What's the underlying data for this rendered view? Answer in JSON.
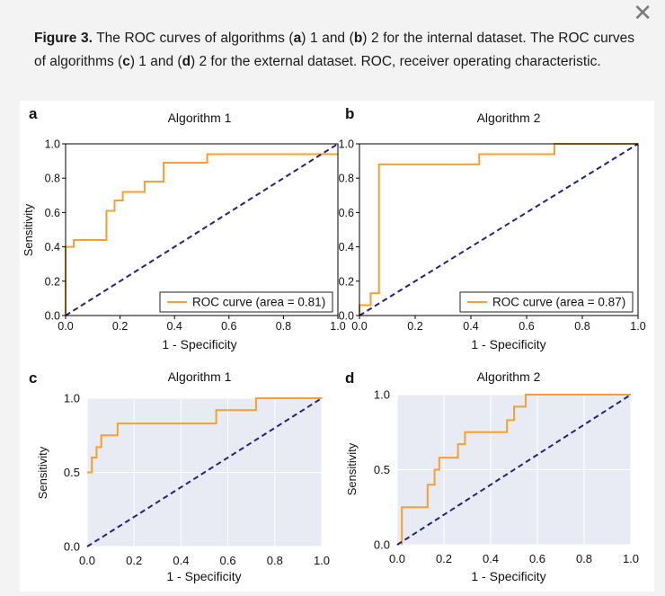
{
  "dialog": {
    "close_symbol": "✕"
  },
  "caption": {
    "figure_label": "Figure 3.",
    "segments": [
      {
        "text": " The ROC curves of algorithms (",
        "bold": false
      },
      {
        "text": "a",
        "bold": true
      },
      {
        "text": ") 1 and (",
        "bold": false
      },
      {
        "text": "b",
        "bold": true
      },
      {
        "text": ") 2 for the internal dataset. The ROC curves of algorithms (",
        "bold": false
      },
      {
        "text": "c",
        "bold": true
      },
      {
        "text": ") 1 and (",
        "bold": false
      },
      {
        "text": "d",
        "bold": true
      },
      {
        "text": ") 2 for the external dataset. ROC, receiver operating characteristic.",
        "bold": false
      }
    ]
  },
  "colors": {
    "roc": "#f5a030",
    "diagonal": "#23237e",
    "axis": "#000000",
    "grid": "#ffffff",
    "panel_bg_external": "#e8eaf4"
  },
  "chart_data": [
    {
      "panel": "a",
      "type": "line",
      "title": "Algorithm 1",
      "xlabel": "1 - Specificity",
      "ylabel": "Sensitivity",
      "xlim": [
        0,
        1
      ],
      "ylim": [
        0,
        1
      ],
      "xticks": [
        "0.0",
        "0.2",
        "0.4",
        "0.6",
        "0.8",
        "1.0"
      ],
      "yticks": [
        "0.0",
        "0.2",
        "0.4",
        "0.6",
        "0.8",
        "1.0"
      ],
      "grid": false,
      "legend": {
        "label": "ROC curve (area = 0.81)",
        "placement": "bottom-right"
      },
      "series": [
        {
          "name": "ROC curve (area = 0.81)",
          "style": "step",
          "x": [
            0,
            0,
            0.03,
            0.03,
            0.15,
            0.15,
            0.18,
            0.18,
            0.21,
            0.21,
            0.29,
            0.29,
            0.36,
            0.36,
            0.52,
            0.52,
            1.0
          ],
          "y": [
            0,
            0.4,
            0.4,
            0.44,
            0.44,
            0.61,
            0.61,
            0.67,
            0.67,
            0.72,
            0.72,
            0.78,
            0.78,
            0.89,
            0.89,
            0.94,
            0.94
          ]
        },
        {
          "name": "Chance",
          "style": "dashed",
          "x": [
            0,
            1
          ],
          "y": [
            0,
            1
          ]
        }
      ]
    },
    {
      "panel": "b",
      "type": "line",
      "title": "Algorithm 2",
      "xlabel": "1 - Specificity",
      "ylabel": "",
      "xlim": [
        0,
        1
      ],
      "ylim": [
        0,
        1
      ],
      "xticks": [
        "0.0",
        "0.2",
        "0.4",
        "0.6",
        "0.8",
        "1.0"
      ],
      "yticks": [
        "0.0",
        "0.2",
        "0.4",
        "0.6",
        "0.8",
        "1.0"
      ],
      "grid": false,
      "legend": {
        "label": "ROC curve (area = 0.87)",
        "placement": "bottom-right"
      },
      "series": [
        {
          "name": "ROC curve (area = 0.87)",
          "style": "step",
          "x": [
            0,
            0,
            0.04,
            0.04,
            0.07,
            0.07,
            0.43,
            0.43,
            0.7,
            0.7,
            1.0
          ],
          "y": [
            0,
            0.06,
            0.06,
            0.13,
            0.13,
            0.88,
            0.88,
            0.94,
            0.94,
            1.0,
            1.0
          ]
        },
        {
          "name": "Chance",
          "style": "dashed",
          "x": [
            0,
            1
          ],
          "y": [
            0,
            1
          ]
        }
      ]
    },
    {
      "panel": "c",
      "type": "line",
      "title": "Algorithm 1",
      "xlabel": "1 - Specificity",
      "ylabel": "Sensitivity",
      "xlim": [
        0,
        1
      ],
      "ylim": [
        0,
        1
      ],
      "xticks": [
        "0.0",
        "0.2",
        "0.4",
        "0.6",
        "0.8",
        "1.0"
      ],
      "yticks": [
        "0.0",
        "0.5",
        "1.0"
      ],
      "grid": true,
      "series": [
        {
          "name": "ROC",
          "style": "step",
          "x": [
            0,
            0.02,
            0.02,
            0.04,
            0.04,
            0.06,
            0.06,
            0.08,
            0.08,
            0.13,
            0.13,
            0.55,
            0.55,
            0.72,
            0.72,
            1.0
          ],
          "y": [
            0.5,
            0.5,
            0.6,
            0.6,
            0.67,
            0.67,
            0.75,
            0.75,
            0.75,
            0.75,
            0.83,
            0.83,
            0.92,
            0.92,
            1.0,
            1.0
          ]
        },
        {
          "name": "Chance",
          "style": "dashed",
          "x": [
            0,
            1
          ],
          "y": [
            0,
            1
          ]
        }
      ]
    },
    {
      "panel": "d",
      "type": "line",
      "title": "Algorithm 2",
      "xlabel": "1 - Specificity",
      "ylabel": "Sensitivity",
      "xlim": [
        0,
        1
      ],
      "ylim": [
        0,
        1
      ],
      "xticks": [
        "0.0",
        "0.2",
        "0.4",
        "0.6",
        "0.8",
        "1.0"
      ],
      "yticks": [
        "0.0",
        "0.5",
        "1.0"
      ],
      "grid": true,
      "series": [
        {
          "name": "ROC",
          "style": "step",
          "x": [
            0.02,
            0.02,
            0.13,
            0.13,
            0.16,
            0.16,
            0.18,
            0.18,
            0.21,
            0.21,
            0.26,
            0.26,
            0.29,
            0.29,
            0.47,
            0.47,
            0.5,
            0.5,
            0.55,
            0.55,
            1.0
          ],
          "y": [
            0,
            0.25,
            0.25,
            0.4,
            0.4,
            0.5,
            0.5,
            0.58,
            0.58,
            0.58,
            0.58,
            0.67,
            0.67,
            0.75,
            0.75,
            0.83,
            0.83,
            0.92,
            0.92,
            1.0,
            1.0
          ]
        },
        {
          "name": "Chance",
          "style": "dashed",
          "x": [
            0,
            1
          ],
          "y": [
            0,
            1
          ]
        }
      ]
    }
  ]
}
